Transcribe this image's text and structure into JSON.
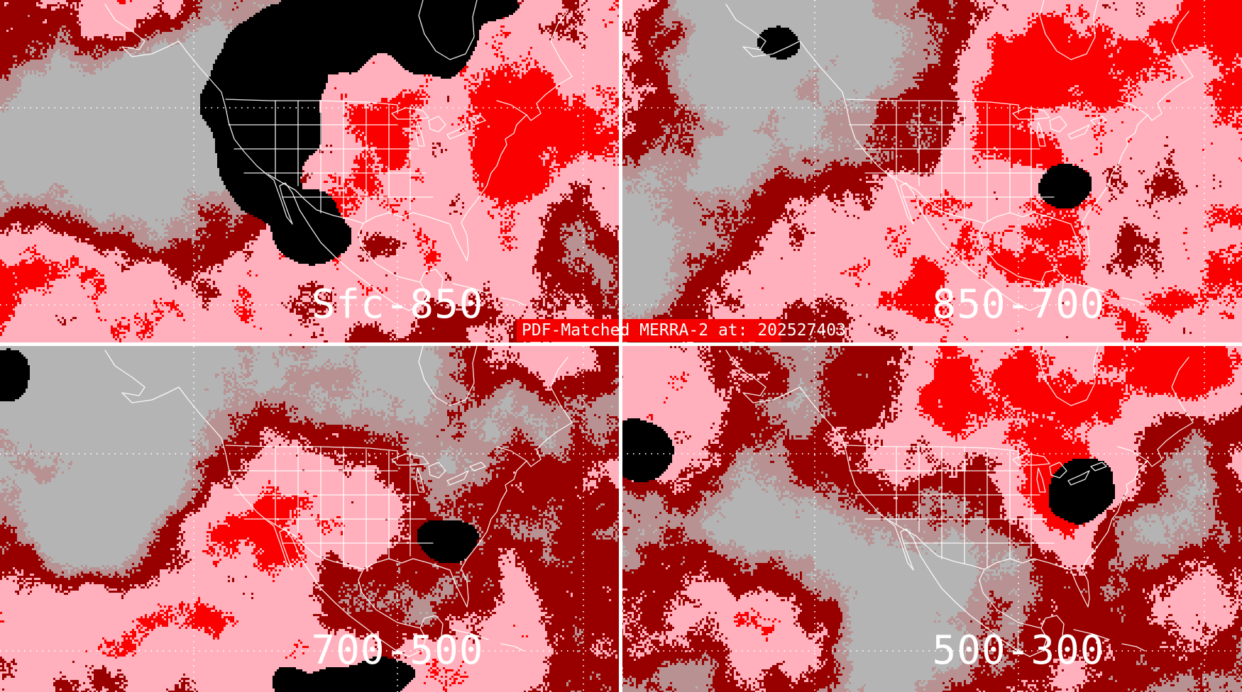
{
  "caption": {
    "text": "PDF-Matched MERRA-2 at: 202527403",
    "timestamp": "202527403"
  },
  "panels": [
    {
      "label": "Sfc-850",
      "position": "top-left"
    },
    {
      "label": "850-700",
      "position": "top-right"
    },
    {
      "label": "700-500",
      "position": "bottom-left"
    },
    {
      "label": "500-300",
      "position": "bottom-right"
    }
  ],
  "palette": {
    "gray": "#b4b4b4",
    "rosy_gray": "#b89292",
    "dark_red": "#980000",
    "pink": "#ffb0bc",
    "red": "#fb0000",
    "black": "#000000",
    "map_lines": "#ffffff",
    "grid_dots": "#ffffff",
    "caption_bg": "#f40000",
    "caption_text": "#ffffff",
    "label_text": "#ffffff",
    "divider": "#ffffff"
  }
}
